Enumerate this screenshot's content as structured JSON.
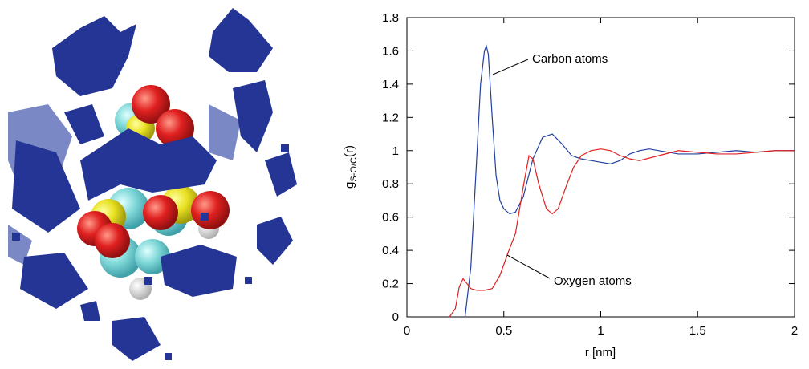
{
  "chart_data": {
    "type": "line",
    "x_label": "r [nm]",
    "y_label": {
      "main": "g",
      "subscript": "S-O/C",
      "suffix": "(r)"
    },
    "xlim": [
      0,
      2
    ],
    "xticks": [
      0,
      0.5,
      1,
      1.5,
      2
    ],
    "ylim": [
      0,
      1.8
    ],
    "yticks": [
      0,
      0.2,
      0.4,
      0.6,
      0.8,
      1,
      1.2,
      1.4,
      1.6,
      1.8
    ],
    "series": [
      {
        "name": "Carbon atoms",
        "color": "#2040a0",
        "x": [
          0.3,
          0.33,
          0.36,
          0.38,
          0.4,
          0.41,
          0.42,
          0.44,
          0.46,
          0.48,
          0.5,
          0.53,
          0.56,
          0.6,
          0.65,
          0.7,
          0.75,
          0.8,
          0.85,
          0.9,
          0.95,
          1.0,
          1.05,
          1.1,
          1.15,
          1.2,
          1.25,
          1.3,
          1.4,
          1.5,
          1.6,
          1.7,
          1.8,
          1.9,
          2.0
        ],
        "values": [
          0,
          0.3,
          0.95,
          1.4,
          1.6,
          1.63,
          1.58,
          1.2,
          0.85,
          0.7,
          0.65,
          0.62,
          0.63,
          0.72,
          0.95,
          1.08,
          1.1,
          1.04,
          0.97,
          0.95,
          0.94,
          0.93,
          0.92,
          0.94,
          0.98,
          1.0,
          1.01,
          1.0,
          0.98,
          0.98,
          0.99,
          1.0,
          0.99,
          1.0,
          1.0
        ]
      },
      {
        "name": "Oxygen atoms",
        "color": "#e02020",
        "x": [
          0.22,
          0.25,
          0.27,
          0.29,
          0.31,
          0.33,
          0.36,
          0.4,
          0.44,
          0.48,
          0.52,
          0.56,
          0.6,
          0.63,
          0.65,
          0.68,
          0.72,
          0.75,
          0.78,
          0.82,
          0.86,
          0.9,
          0.95,
          1.0,
          1.05,
          1.1,
          1.15,
          1.2,
          1.3,
          1.4,
          1.5,
          1.6,
          1.7,
          1.8,
          1.9,
          2.0
        ],
        "values": [
          0,
          0.05,
          0.18,
          0.23,
          0.2,
          0.17,
          0.16,
          0.16,
          0.17,
          0.25,
          0.38,
          0.5,
          0.78,
          0.97,
          0.95,
          0.8,
          0.65,
          0.62,
          0.65,
          0.78,
          0.9,
          0.97,
          1.0,
          1.01,
          1.0,
          0.97,
          0.95,
          0.94,
          0.97,
          1.0,
          0.99,
          0.98,
          0.98,
          0.99,
          1.0,
          1.0
        ]
      }
    ]
  }
}
